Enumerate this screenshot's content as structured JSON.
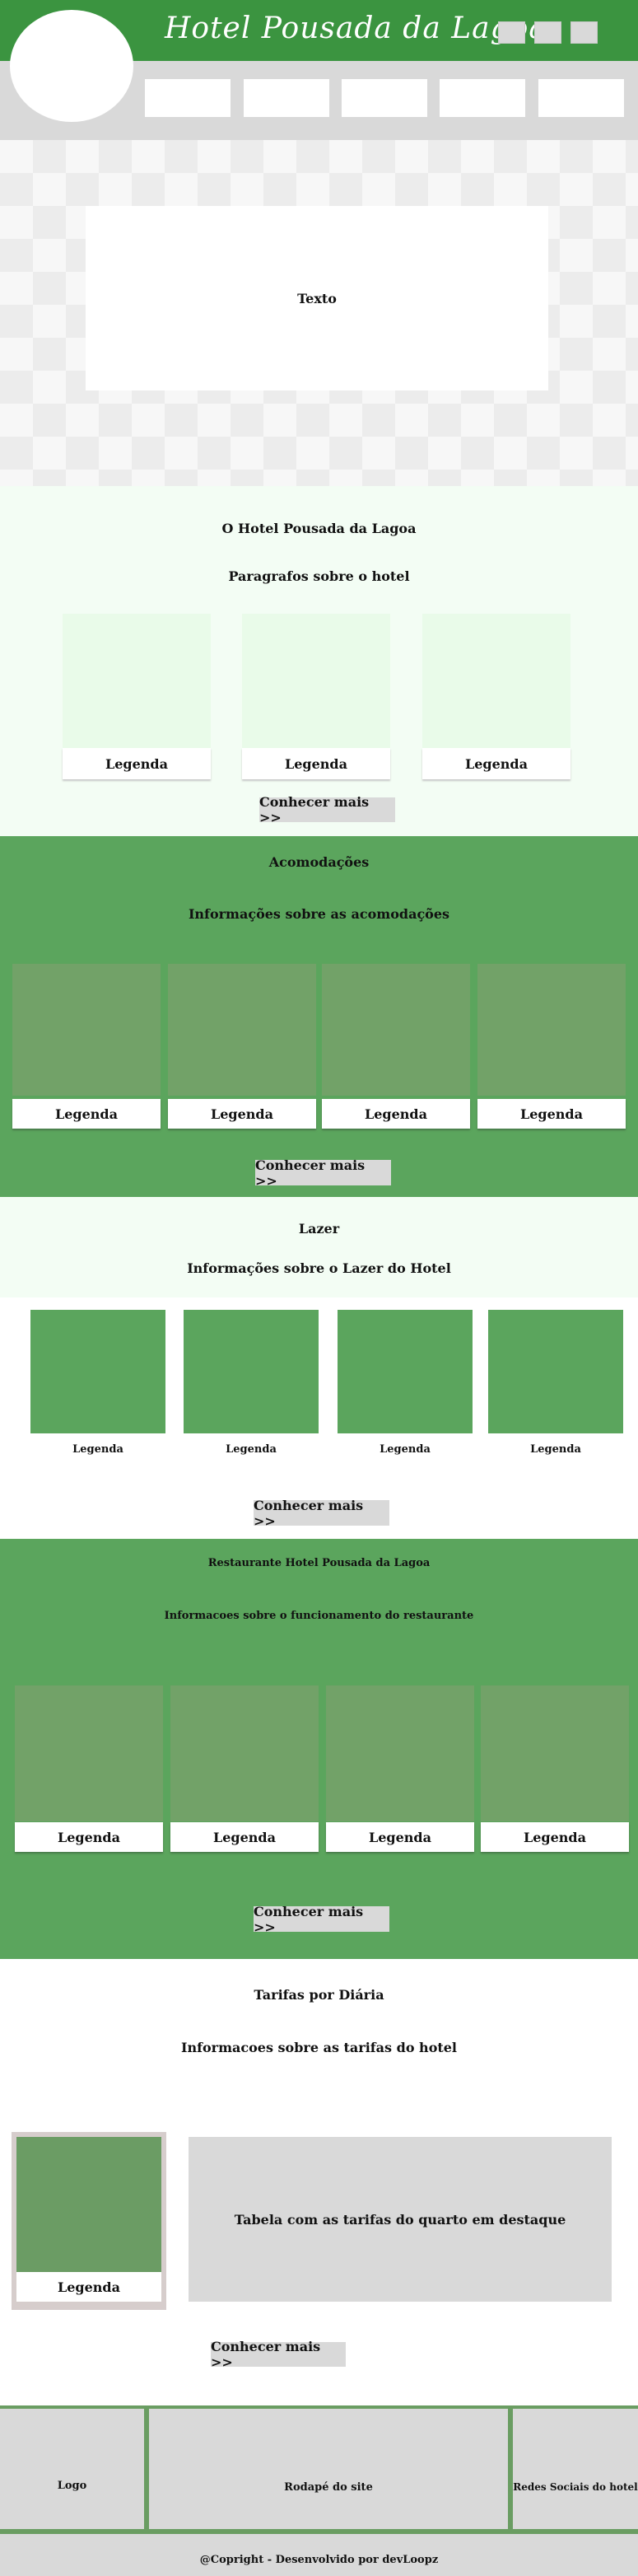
{
  "header": {
    "brand": "Hotel Pousada da Lagoa",
    "top_buttons": [
      "",
      "",
      ""
    ],
    "nav_items": [
      "",
      "",
      "",
      "",
      ""
    ]
  },
  "hero": {
    "text": "Texto"
  },
  "about": {
    "title": "O Hotel Pousada da Lagoa",
    "subtitle": "Paragrafos  sobre o hotel",
    "cards": [
      {
        "legend": "Legenda"
      },
      {
        "legend": "Legenda"
      },
      {
        "legend": "Legenda"
      }
    ],
    "button": "Conhecer mais >>"
  },
  "accommodations": {
    "title": "Acomodações",
    "subtitle": "Informações sobre as acomodações",
    "cards": [
      {
        "legend": "Legenda"
      },
      {
        "legend": "Legenda"
      },
      {
        "legend": "Legenda"
      },
      {
        "legend": "Legenda"
      }
    ],
    "button": "Conhecer mais >>"
  },
  "leisure": {
    "title": "Lazer",
    "subtitle": "Informações sobre o Lazer do Hotel",
    "cards": [
      {
        "legend": "Legenda"
      },
      {
        "legend": "Legenda"
      },
      {
        "legend": "Legenda"
      },
      {
        "legend": "Legenda"
      }
    ],
    "button": "Conhecer mais >>"
  },
  "restaurant": {
    "title": "Restaurante Hotel Pousada da Lagoa",
    "subtitle": "Informacoes sobre o funcionamento do restaurante",
    "cards": [
      {
        "legend": "Legenda"
      },
      {
        "legend": "Legenda"
      },
      {
        "legend": "Legenda"
      },
      {
        "legend": "Legenda"
      }
    ],
    "button": "Conhecer mais >>"
  },
  "rates": {
    "title": "Tarifas por Diária",
    "subtitle": "Informacoes sobre as tarifas do hotel",
    "card_legend": "Legenda",
    "table_text": "Tabela com as tarifas do quarto em destaque",
    "button": "Conhecer mais >>"
  },
  "footer": {
    "logo": "Logo",
    "center": "Rodapé do site",
    "social": "Redes Sociais do hotel",
    "copyright": "@Copright - Desenvolvido por devLoopz"
  },
  "colors": {
    "header_green": "#3b9440",
    "section_green": "#5ba55d",
    "light_mint": "#f3fdf4",
    "gray": "#d9d9d9"
  }
}
